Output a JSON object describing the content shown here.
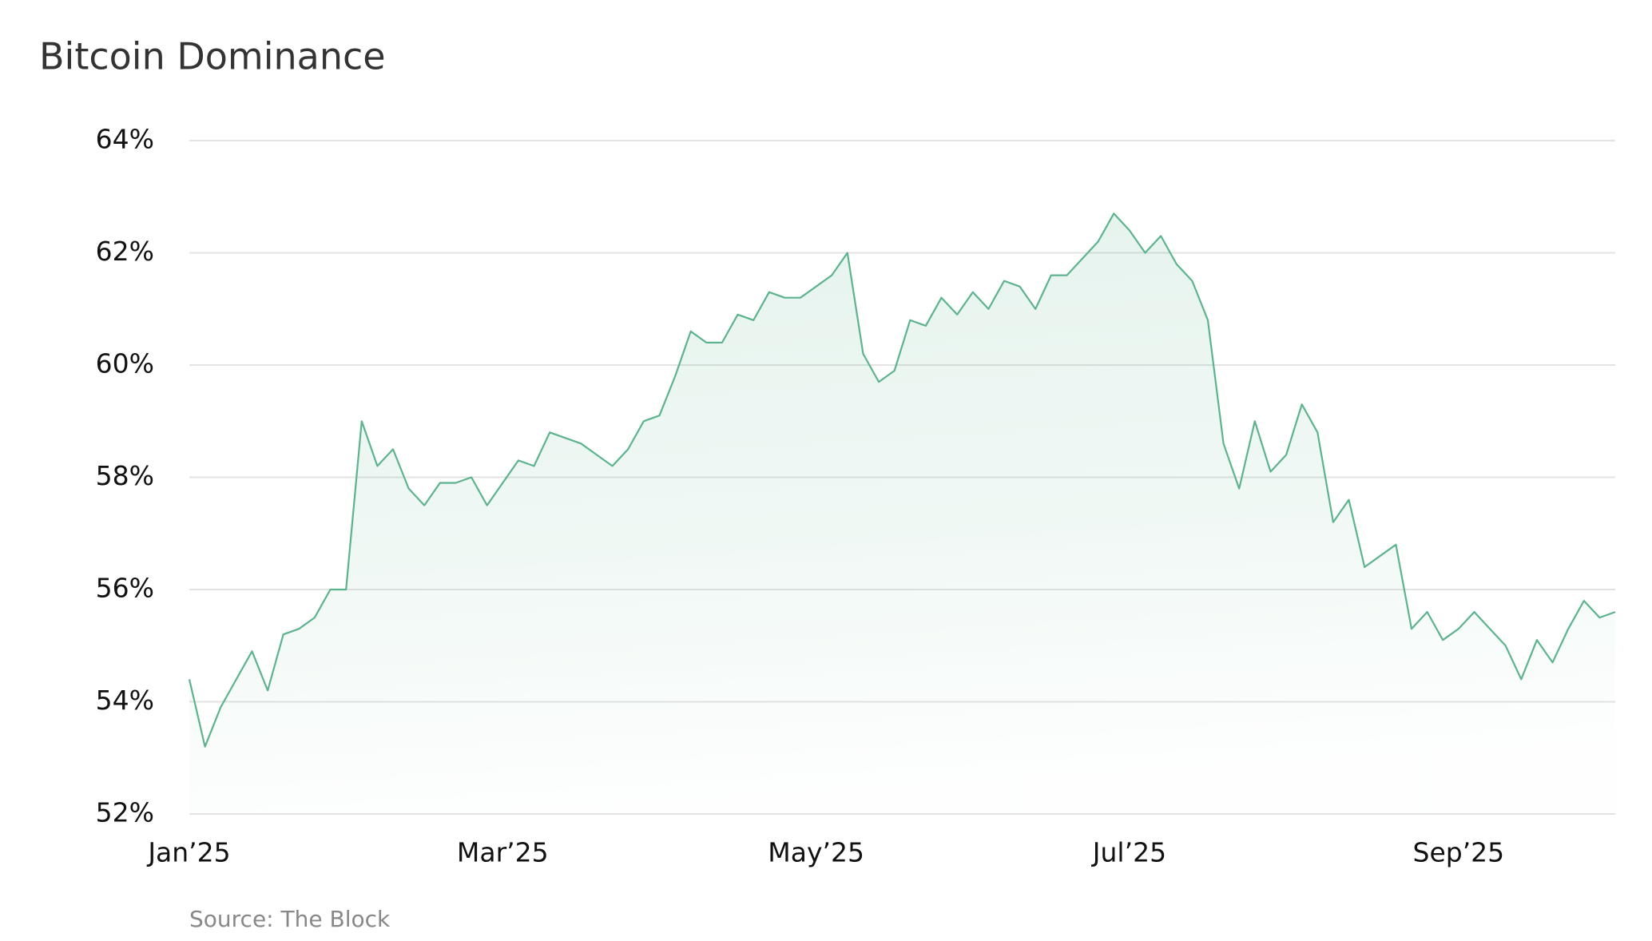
{
  "chart_data": {
    "type": "area",
    "title": "Bitcoin Dominance",
    "source": "Source: The Block",
    "categories": [
      "Jan’25",
      null,
      null,
      null,
      null,
      null,
      null,
      null,
      null,
      null,
      null,
      null,
      null,
      null,
      null,
      null,
      null,
      null,
      null,
      null,
      "Mar’25",
      null,
      null,
      null,
      null,
      null,
      null,
      null,
      null,
      null,
      null,
      null,
      null,
      null,
      null,
      null,
      null,
      null,
      null,
      null,
      "May’25",
      null,
      null,
      null,
      null,
      null,
      null,
      null,
      null,
      null,
      null,
      null,
      null,
      null,
      null,
      null,
      null,
      null,
      null,
      null,
      "Jul’25",
      null,
      null,
      null,
      null,
      null,
      null,
      null,
      null,
      null,
      null,
      null,
      null,
      null,
      null,
      null,
      null,
      null,
      null,
      null,
      null,
      "Sep’25",
      null,
      null,
      null,
      null,
      null,
      null,
      null,
      null,
      null,
      null
    ],
    "series": [
      {
        "name": "Bitcoin Dominance",
        "color": "#5cb38d",
        "values": [
          54.4,
          53.2,
          53.9,
          54.4,
          54.9,
          54.2,
          55.2,
          55.3,
          55.5,
          56.0,
          56.0,
          59.0,
          58.2,
          58.5,
          57.8,
          57.5,
          57.9,
          57.9,
          58.0,
          57.5,
          57.9,
          58.3,
          58.2,
          58.8,
          58.7,
          58.6,
          58.4,
          58.2,
          58.5,
          59.0,
          59.1,
          59.8,
          60.6,
          60.4,
          60.4,
          60.9,
          60.8,
          61.3,
          61.2,
          61.2,
          61.4,
          61.6,
          62.0,
          60.2,
          59.7,
          59.9,
          60.8,
          60.7,
          61.2,
          60.9,
          61.3,
          61.0,
          61.5,
          61.4,
          61.0,
          61.6,
          61.6,
          61.9,
          62.2,
          62.7,
          62.4,
          62.0,
          62.3,
          61.8,
          61.5,
          60.8,
          58.6,
          57.8,
          59.0,
          58.1,
          58.4,
          59.3,
          58.8,
          57.2,
          57.6,
          56.4,
          56.6,
          56.8,
          55.3,
          55.6,
          55.1,
          55.3,
          55.6,
          55.3,
          55.0,
          54.4,
          55.1,
          54.7,
          55.3,
          55.8,
          55.5,
          55.6
        ]
      }
    ],
    "ylim": [
      52,
      64
    ],
    "yticks": [
      {
        "value": 52,
        "label": "52%"
      },
      {
        "value": 54,
        "label": "54%"
      },
      {
        "value": 56,
        "label": "56%"
      },
      {
        "value": 58,
        "label": "58%"
      },
      {
        "value": 60,
        "label": "60%"
      },
      {
        "value": 62,
        "label": "62%"
      },
      {
        "value": 64,
        "label": "64%"
      }
    ],
    "grid": true
  }
}
